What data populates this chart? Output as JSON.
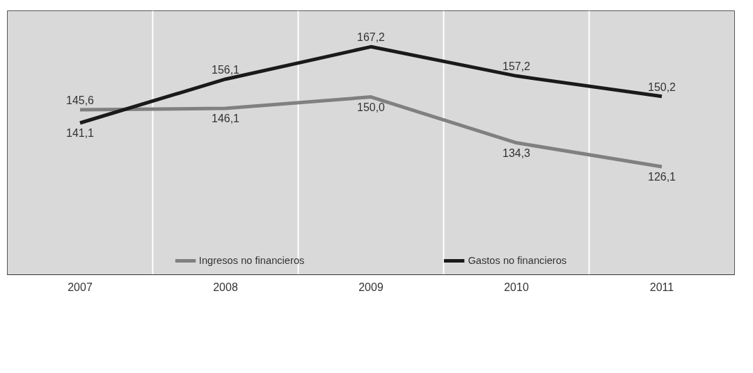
{
  "chart_data": {
    "type": "line",
    "categories": [
      "2007",
      "2008",
      "2009",
      "2010",
      "2011"
    ],
    "series": [
      {
        "name": "Ingresos no financieros",
        "color": "#808080",
        "values": [
          145.6,
          146.1,
          150.0,
          134.3,
          126.1
        ],
        "value_labels": [
          "145,6",
          "146,1",
          "150,0",
          "134,3",
          "126,1"
        ]
      },
      {
        "name": "Gastos no financieros",
        "color": "#1a1a1a",
        "values": [
          141.1,
          156.1,
          167.2,
          157.2,
          150.2
        ],
        "value_labels": [
          "141,1",
          "156,1",
          "167,2",
          "157,2",
          "150,2"
        ]
      }
    ],
    "grid": "x",
    "legend": "bottom",
    "line_style": "solid"
  }
}
